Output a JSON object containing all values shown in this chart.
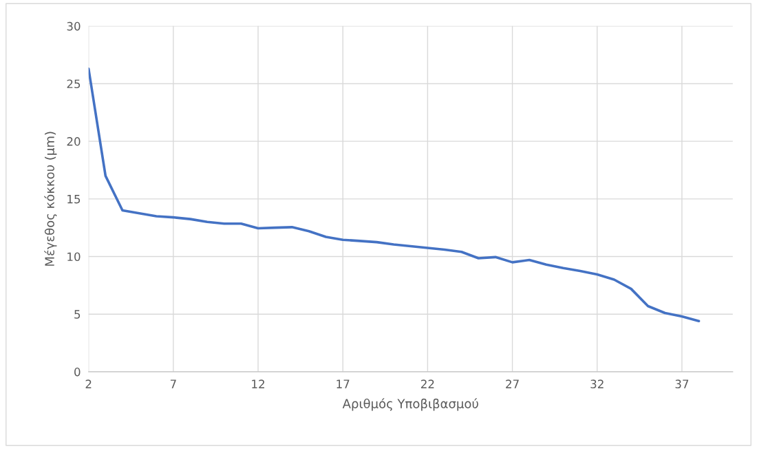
{
  "chart_data": {
    "type": "line",
    "xlabel": "Αριθμός Υποβιβασμού",
    "ylabel": "Μέγεθος κόκκου (μm)",
    "x": [
      2,
      3,
      4,
      5,
      6,
      7,
      8,
      9,
      10,
      11,
      12,
      13,
      14,
      15,
      16,
      17,
      18,
      19,
      20,
      21,
      22,
      23,
      24,
      25,
      26,
      27,
      28,
      29,
      30,
      31,
      32,
      33,
      34,
      35,
      36,
      37,
      38
    ],
    "series": [
      {
        "color": "#4472c4",
        "values": [
          26.3,
          17.0,
          14.0,
          13.75,
          13.5,
          13.4,
          13.25,
          13.0,
          12.85,
          12.85,
          12.45,
          12.5,
          12.55,
          12.2,
          11.7,
          11.45,
          11.35,
          11.25,
          11.05,
          10.9,
          10.75,
          10.6,
          10.4,
          9.85,
          9.95,
          9.5,
          9.7,
          9.3,
          9.0,
          8.75,
          8.45,
          8.0,
          7.2,
          5.7,
          5.1,
          4.8,
          4.4
        ]
      }
    ],
    "xlim": [
      2,
      40
    ],
    "xticks": [
      2,
      7,
      12,
      17,
      22,
      27,
      32,
      37
    ],
    "ylim": [
      0,
      30
    ],
    "yticks": [
      0,
      5,
      10,
      15,
      20,
      25,
      30
    ],
    "grid": true,
    "marker": "none",
    "line_style": "solid"
  }
}
